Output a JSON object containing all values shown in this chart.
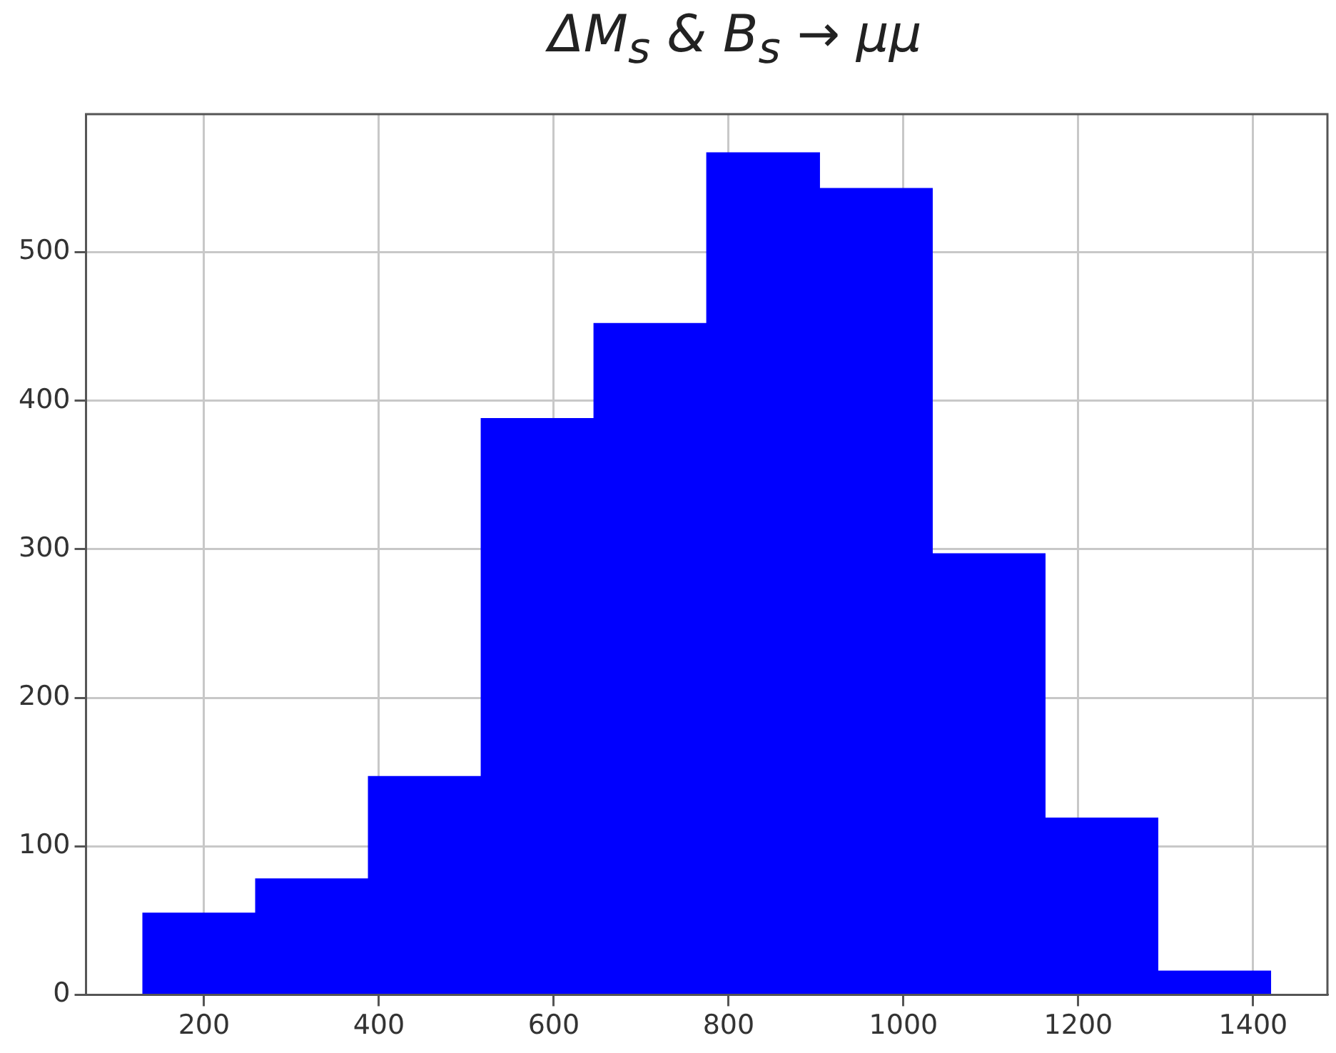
{
  "chart_data": {
    "type": "histogram",
    "title": "ΔM$_{s}$ & B$_{s}$ → μμ",
    "bins": [
      130,
      259,
      388,
      517,
      646,
      775,
      904,
      1033,
      1162,
      1291,
      1420
    ],
    "values": [
      55,
      78,
      147,
      388,
      452,
      567,
      543,
      297,
      119,
      16
    ],
    "color": "#0000ff",
    "xlim": [
      65,
      1485
    ],
    "xticks": [
      200,
      400,
      600,
      800,
      1000,
      1200,
      1400
    ],
    "ylim": [
      0,
      593
    ],
    "yticks": [
      0,
      100,
      200,
      300,
      400,
      500
    ],
    "grid": true,
    "legend": false
  }
}
